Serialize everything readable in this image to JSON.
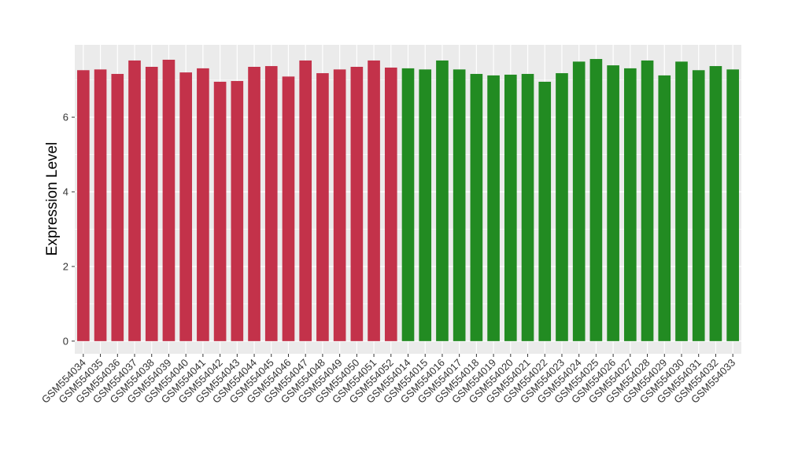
{
  "chart_data": {
    "type": "bar",
    "y_label": "Expression Level",
    "categories": [
      "GSM554034",
      "GSM554035",
      "GSM554036",
      "GSM554037",
      "GSM554038",
      "GSM554039",
      "GSM554040",
      "GSM554041",
      "GSM554042",
      "GSM554043",
      "GSM554044",
      "GSM554045",
      "GSM554046",
      "GSM554047",
      "GSM554048",
      "GSM554049",
      "GSM554050",
      "GSM554051",
      "GSM554052",
      "GSM554014",
      "GSM554015",
      "GSM554016",
      "GSM554017",
      "GSM554018",
      "GSM554019",
      "GSM554020",
      "GSM554021",
      "GSM554022",
      "GSM554023",
      "GSM554024",
      "GSM554025",
      "GSM554026",
      "GSM554027",
      "GSM554028",
      "GSM554029",
      "GSM554030",
      "GSM554031",
      "GSM554032",
      "GSM554033"
    ],
    "values": [
      7.26,
      7.28,
      7.16,
      7.52,
      7.35,
      7.54,
      7.2,
      7.31,
      6.95,
      6.97,
      7.35,
      7.37,
      7.09,
      7.52,
      7.18,
      7.28,
      7.35,
      7.52,
      7.33,
      7.31,
      7.28,
      7.52,
      7.28,
      7.16,
      7.12,
      7.14,
      7.16,
      6.95,
      7.18,
      7.49,
      7.56,
      7.39,
      7.31,
      7.52,
      7.12,
      7.49,
      7.26,
      7.37,
      7.28
    ],
    "colors": [
      "#c3324a",
      "#c3324a",
      "#c3324a",
      "#c3324a",
      "#c3324a",
      "#c3324a",
      "#c3324a",
      "#c3324a",
      "#c3324a",
      "#c3324a",
      "#c3324a",
      "#c3324a",
      "#c3324a",
      "#c3324a",
      "#c3324a",
      "#c3324a",
      "#c3324a",
      "#c3324a",
      "#c3324a",
      "#228b22",
      "#228b22",
      "#228b22",
      "#228b22",
      "#228b22",
      "#228b22",
      "#228b22",
      "#228b22",
      "#228b22",
      "#228b22",
      "#228b22",
      "#228b22",
      "#228b22",
      "#228b22",
      "#228b22",
      "#228b22",
      "#228b22",
      "#228b22",
      "#228b22",
      "#228b22"
    ],
    "ylim": [
      -0.34,
      7.94
    ],
    "yticks": [
      0,
      2,
      4,
      6
    ],
    "grid": true
  }
}
